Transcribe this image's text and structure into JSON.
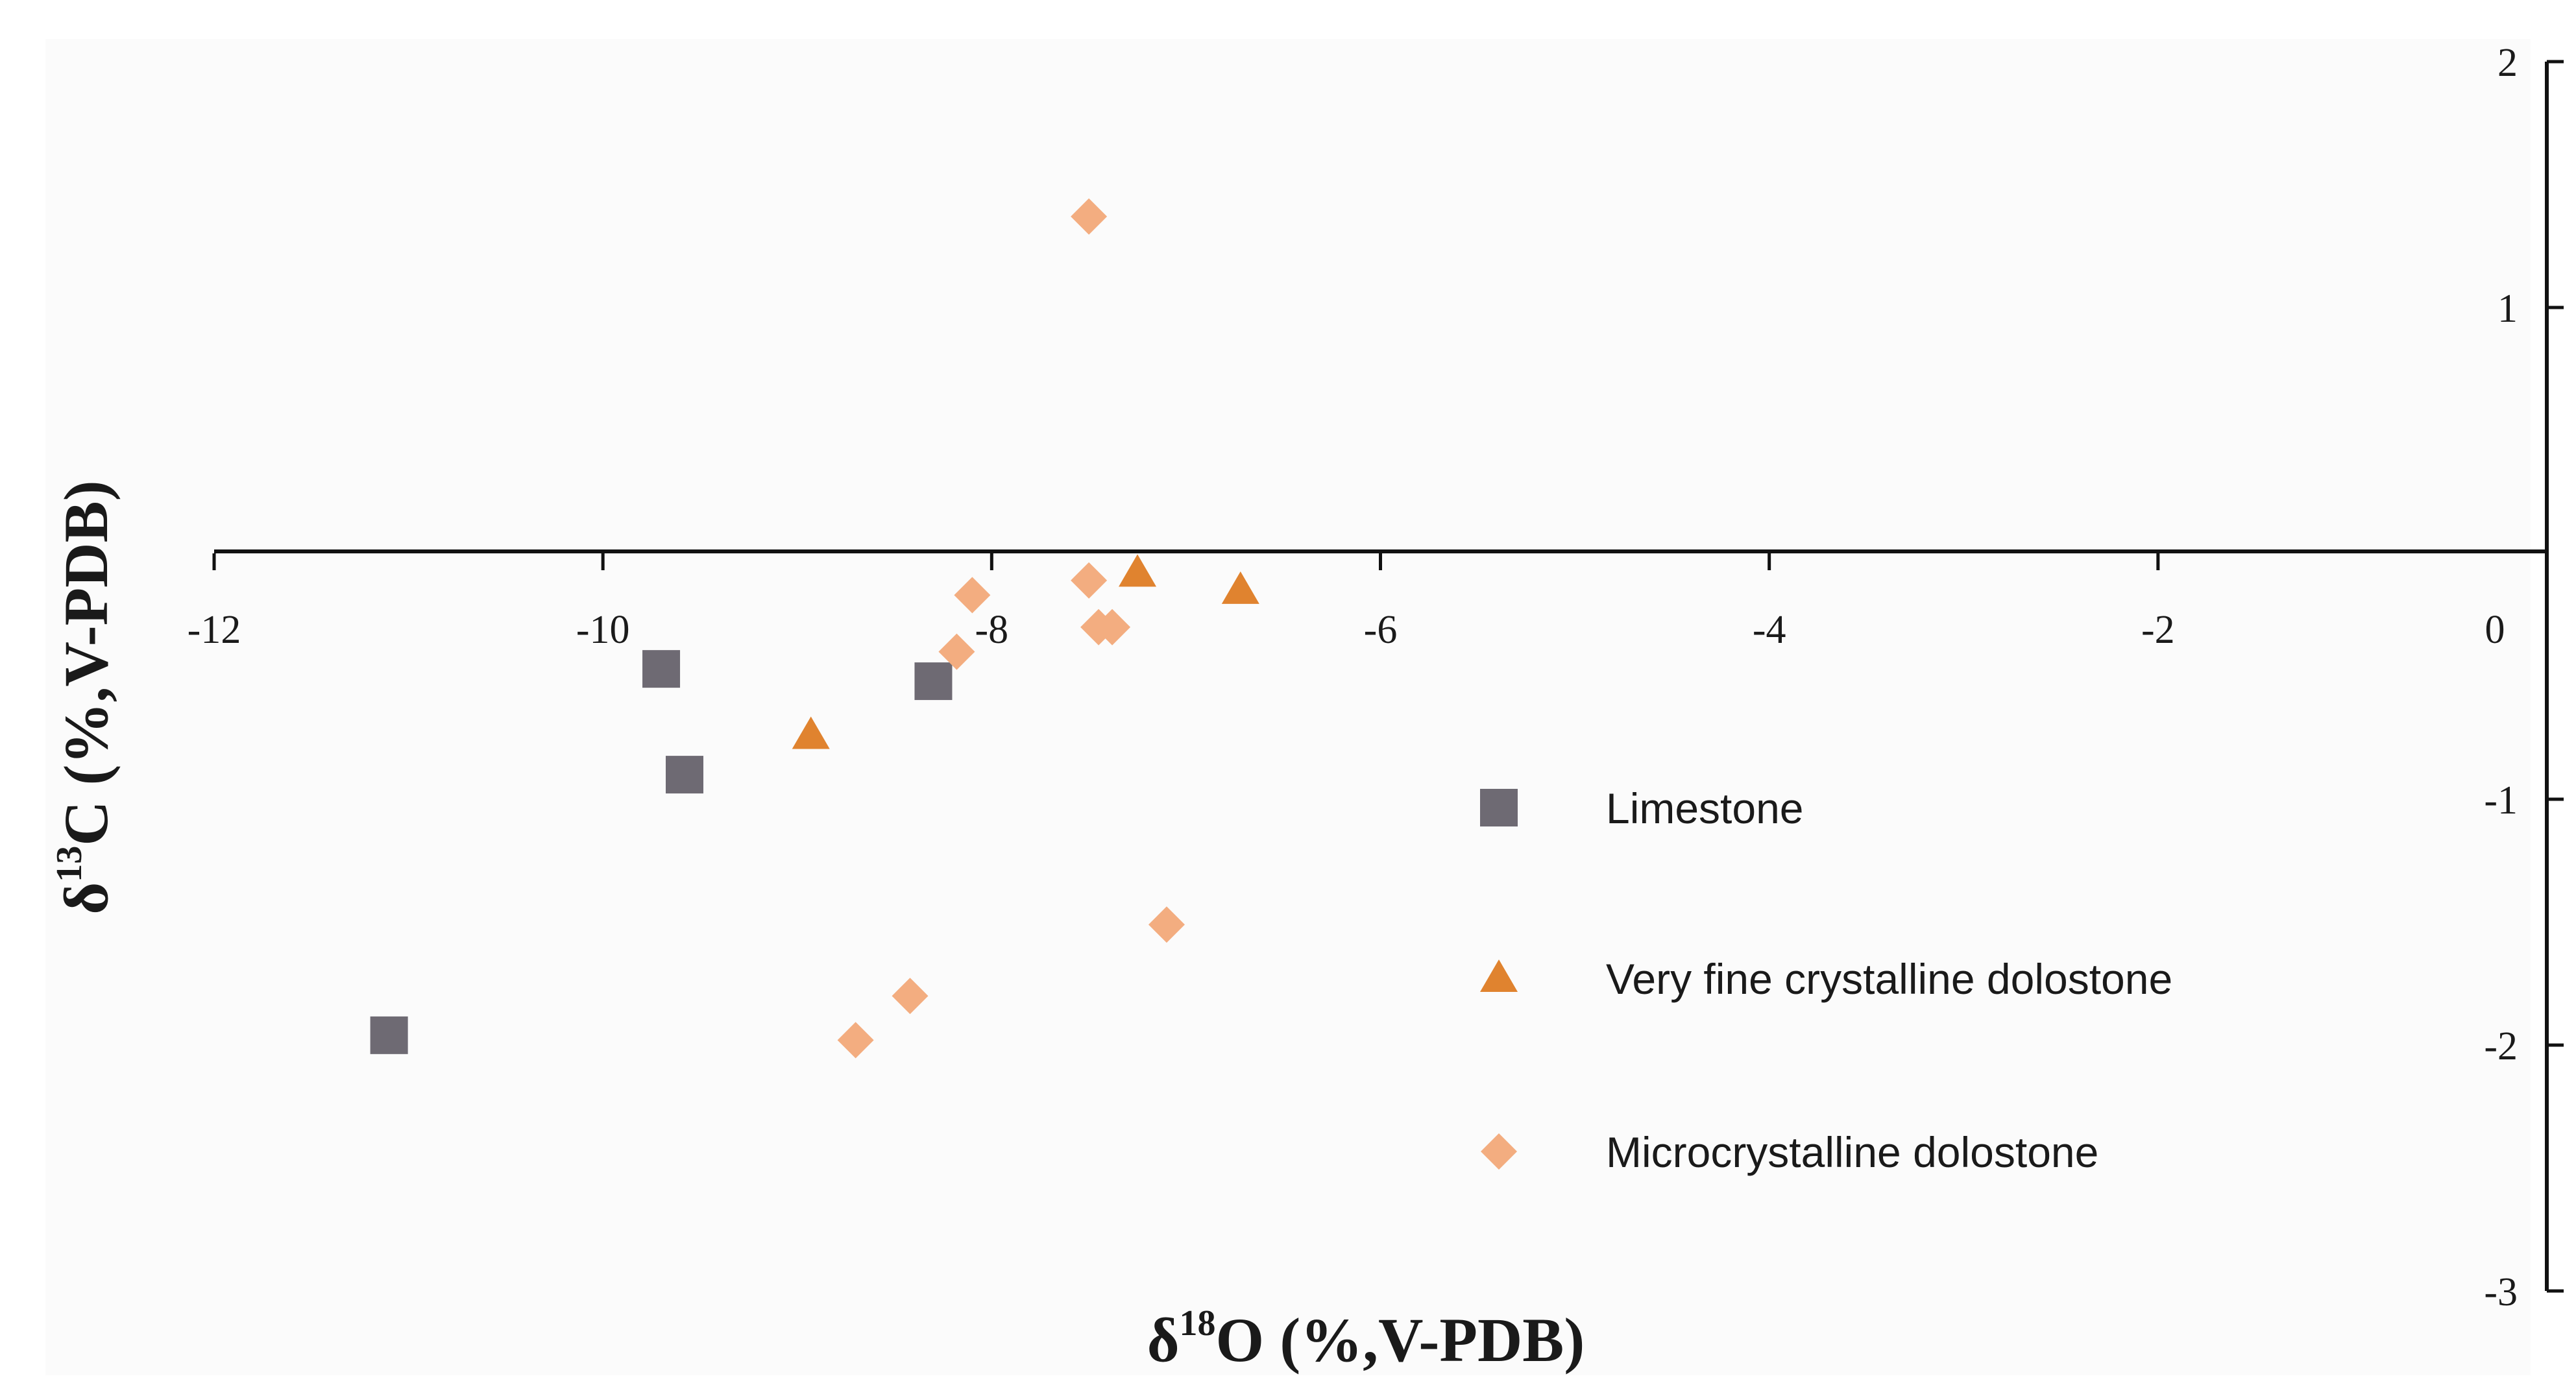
{
  "chart_data": {
    "type": "scatter",
    "title": "",
    "xlabel": {
      "prefix": "δ",
      "sup": "18",
      "suffix": "O (%,V-PDB)"
    },
    "ylabel": {
      "prefix": "δ",
      "sup": "13",
      "suffix": "C (%,V-PDB)"
    },
    "xlim": [
      -12,
      0
    ],
    "ylim": [
      -3,
      2
    ],
    "x_ticks": [
      -12,
      -10,
      -8,
      -6,
      -4,
      -2,
      0
    ],
    "y_ticks": [
      2,
      1,
      -1,
      -2,
      -3
    ],
    "legend_position": "right-center",
    "series": [
      {
        "name": "Limestone",
        "marker": "square",
        "color": "#6e6a73",
        "points": [
          {
            "x": -9.7,
            "y": -0.47
          },
          {
            "x": -9.58,
            "y": -0.9
          },
          {
            "x": -8.3,
            "y": -0.52
          },
          {
            "x": -11.1,
            "y": -1.96
          }
        ]
      },
      {
        "name": "Very fine crystalline dolostone",
        "marker": "triangle",
        "color": "#e0832f",
        "points": [
          {
            "x": -7.25,
            "y": -0.08
          },
          {
            "x": -6.72,
            "y": -0.15
          },
          {
            "x": -8.93,
            "y": -0.74
          }
        ]
      },
      {
        "name": "Microcrystalline dolostone",
        "marker": "diamond",
        "color": "#f3ad80",
        "points": [
          {
            "x": -7.5,
            "y": 1.37
          },
          {
            "x": -8.1,
            "y": -0.17
          },
          {
            "x": -7.5,
            "y": -0.11
          },
          {
            "x": -7.45,
            "y": -0.3
          },
          {
            "x": -7.38,
            "y": -0.3
          },
          {
            "x": -8.18,
            "y": -0.4
          },
          {
            "x": -7.1,
            "y": -1.51
          },
          {
            "x": -8.42,
            "y": -1.8
          },
          {
            "x": -8.7,
            "y": -1.98
          }
        ]
      }
    ]
  }
}
